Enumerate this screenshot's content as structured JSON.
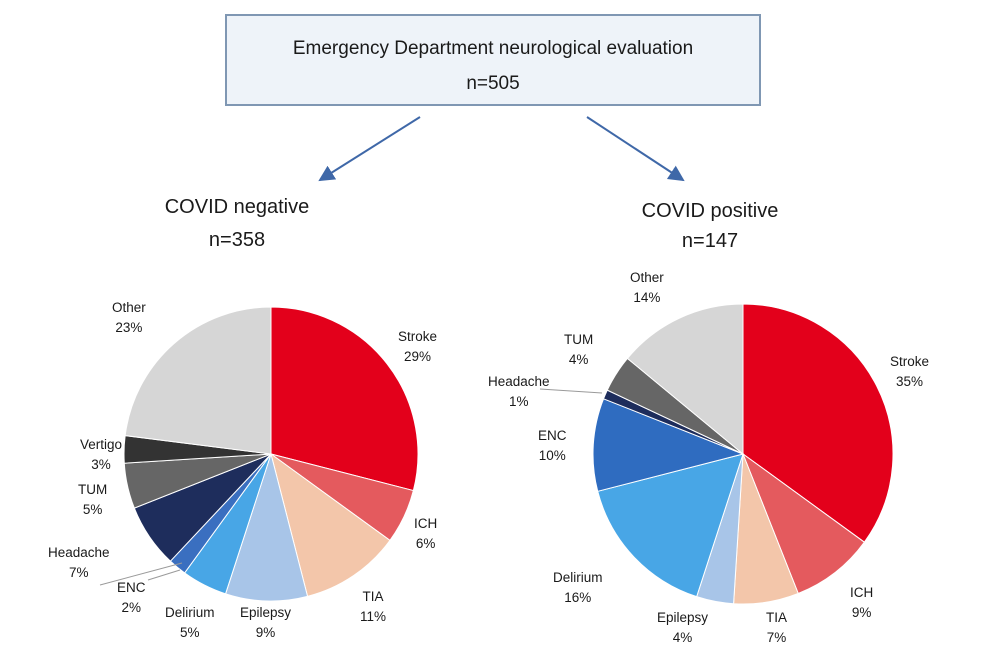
{
  "flow": {
    "title": "Emergency Department neurological evaluation",
    "n": "n=505"
  },
  "colors": {
    "Stroke": "#e3001b",
    "ICH": "#e45a5e",
    "TIA": "#f3c6aa",
    "Epilepsy": "#a8c5e8",
    "Delirium": "#48a6e6",
    "ENC_neg": "#3a6fc0",
    "ENC_pos": "#2f6cc0",
    "Headache": "#1e2d5c",
    "TUM": "#666666",
    "Vertigo": "#333333",
    "Other": "#d6d6d6"
  },
  "chart_data": [
    {
      "type": "pie",
      "title": "COVID negative",
      "subtitle": "n=358",
      "slices": [
        {
          "label": "Stroke",
          "pct": "29%",
          "value": 29
        },
        {
          "label": "ICH",
          "pct": "6%",
          "value": 6
        },
        {
          "label": "TIA",
          "pct": "11%",
          "value": 11
        },
        {
          "label": "Epilepsy",
          "pct": "9%",
          "value": 9
        },
        {
          "label": "Delirium",
          "pct": "5%",
          "value": 5
        },
        {
          "label": "ENC",
          "pct": "2%",
          "value": 2
        },
        {
          "label": "Headache",
          "pct": "7%",
          "value": 7
        },
        {
          "label": "TUM",
          "pct": "5%",
          "value": 5
        },
        {
          "label": "Vertigo",
          "pct": "3%",
          "value": 3
        },
        {
          "label": "Other",
          "pct": "23%",
          "value": 23
        }
      ]
    },
    {
      "type": "pie",
      "title": "COVID positive",
      "subtitle": "n=147",
      "slices": [
        {
          "label": "Stroke",
          "pct": "35%",
          "value": 35
        },
        {
          "label": "ICH",
          "pct": "9%",
          "value": 9
        },
        {
          "label": "TIA",
          "pct": "7%",
          "value": 7
        },
        {
          "label": "Epilepsy",
          "pct": "4%",
          "value": 4
        },
        {
          "label": "Delirium",
          "pct": "16%",
          "value": 16
        },
        {
          "label": "ENC",
          "pct": "10%",
          "value": 10
        },
        {
          "label": "Headache",
          "pct": "1%",
          "value": 1
        },
        {
          "label": "TUM",
          "pct": "4%",
          "value": 4
        },
        {
          "label": "Other",
          "pct": "14%",
          "value": 14
        }
      ]
    }
  ]
}
